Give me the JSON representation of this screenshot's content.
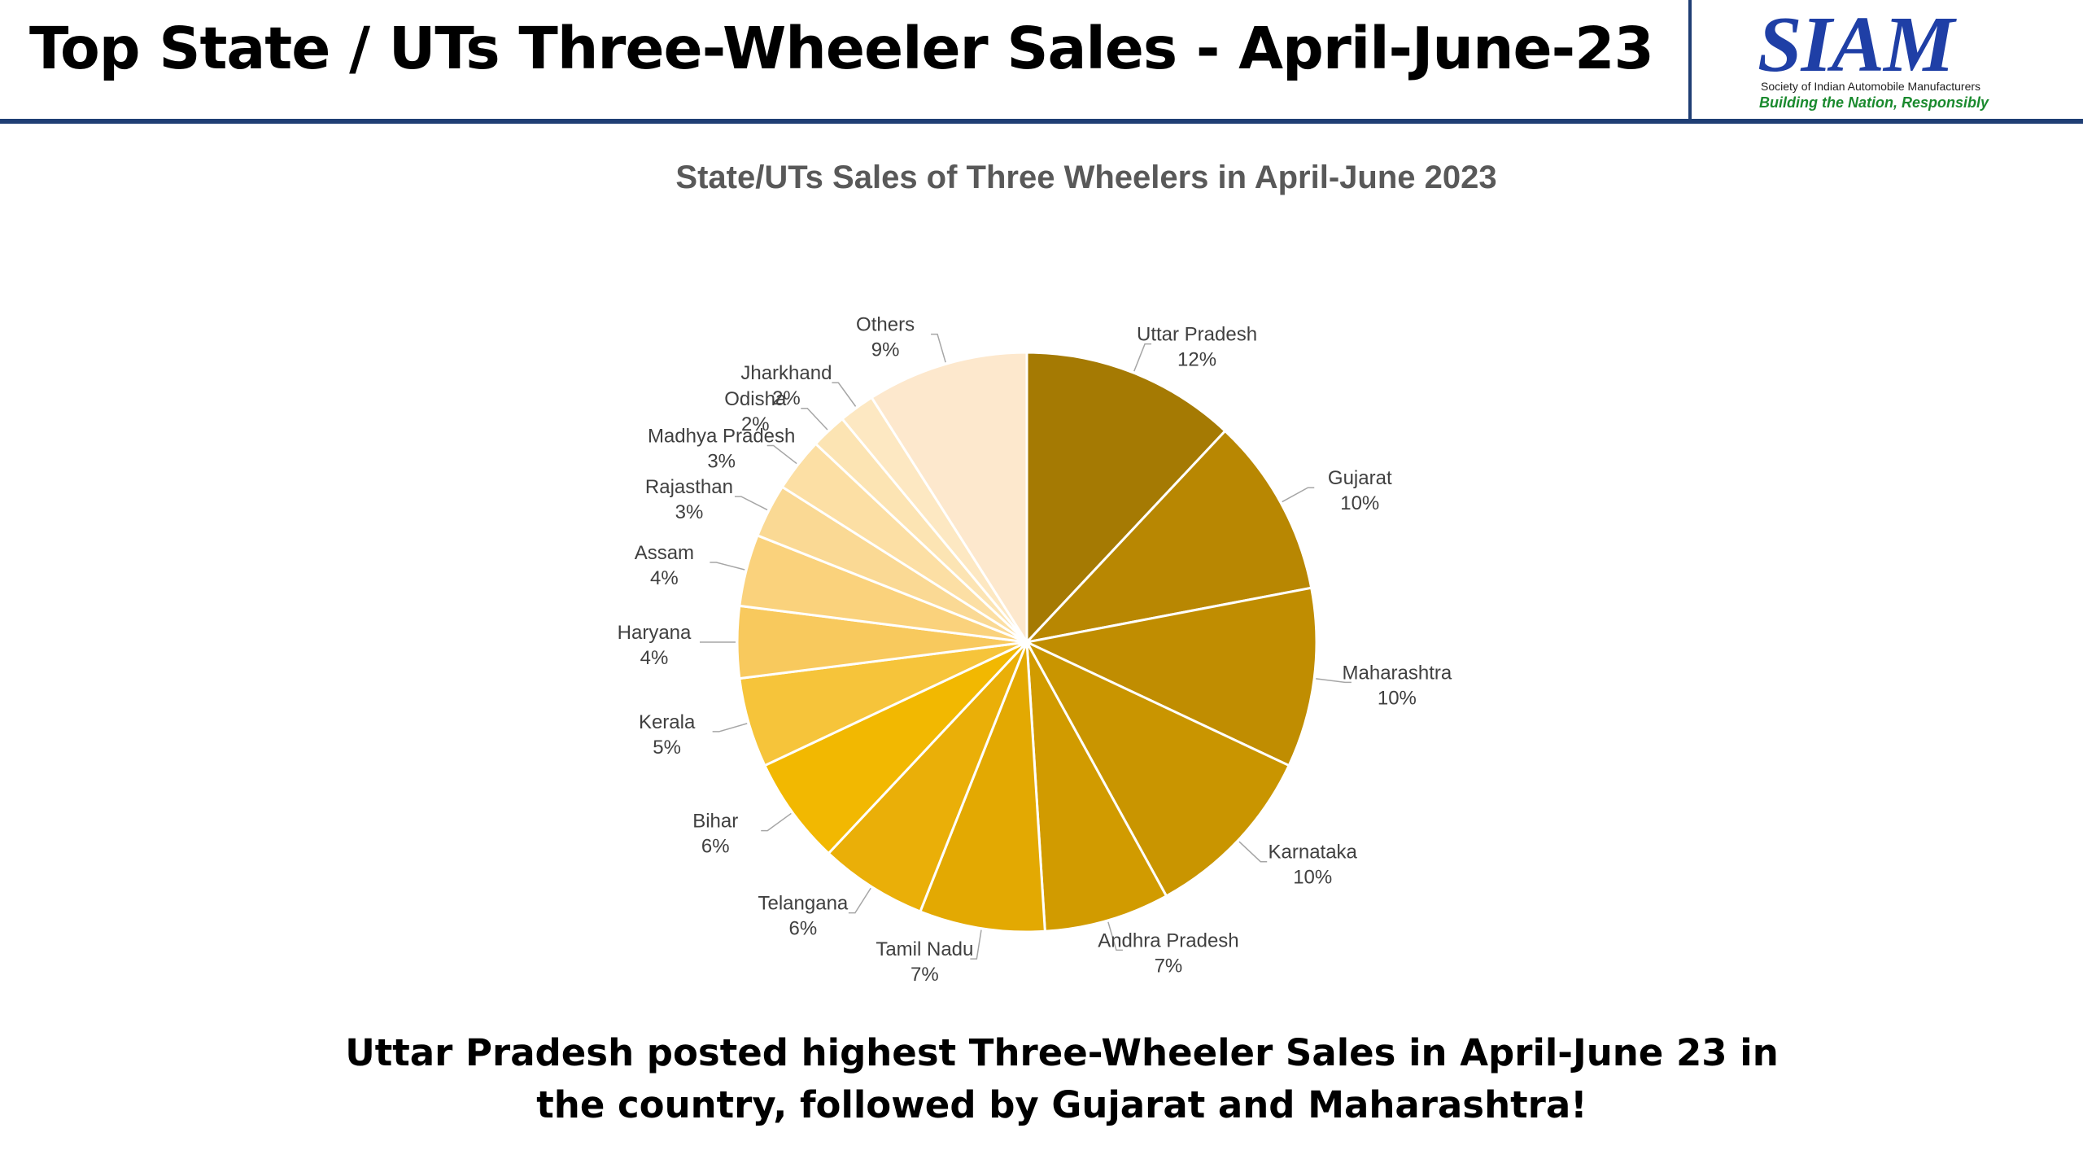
{
  "header": {
    "title": "Top State / UTs Three-Wheeler Sales - April-June-23",
    "logo": {
      "mark": "SIAM",
      "subtitle": "Society of Indian Automobile Manufacturers",
      "tagline": "Building the Nation, Responsibly"
    }
  },
  "chart_data": {
    "type": "pie",
    "title": "State/UTs Sales of Three Wheelers in April-June 2023",
    "categories": [
      "Uttar Pradesh",
      "Gujarat",
      "Maharashtra",
      "Karnataka",
      "Andhra Pradesh",
      "Tamil Nadu",
      "Telangana",
      "Bihar",
      "Kerala",
      "Haryana",
      "Assam",
      "Rajasthan",
      "Madhya Pradesh",
      "Odisha",
      "Jharkhand",
      "Others"
    ],
    "values": [
      12,
      10,
      10,
      10,
      7,
      7,
      6,
      6,
      5,
      4,
      4,
      3,
      3,
      2,
      2,
      9
    ],
    "labels": [
      "12%",
      "10%",
      "10%",
      "10%",
      "7%",
      "7%",
      "6%",
      "6%",
      "5%",
      "4%",
      "4%",
      "3%",
      "3%",
      "2%",
      "2%",
      "9%"
    ],
    "colors": [
      "#a57a03",
      "#b88702",
      "#c08d01",
      "#c99500",
      "#d19b00",
      "#e3a902",
      "#eaaf08",
      "#f2b801",
      "#f6c43a",
      "#f8c95d",
      "#fad27c",
      "#fad994",
      "#fcdfa4",
      "#fce4b3",
      "#fde8c2",
      "#fde8cd"
    ]
  },
  "conclusion": {
    "line1": "Uttar Pradesh posted highest Three-Wheeler Sales in April-June 23 in",
    "line2": "the country, followed by Gujarat and Maharashtra!"
  }
}
